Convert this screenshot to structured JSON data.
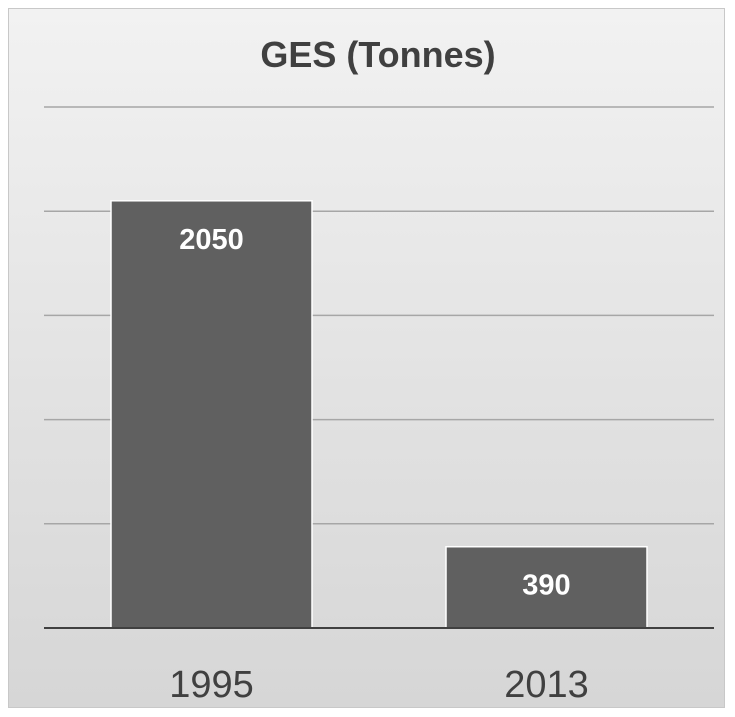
{
  "chart_data": {
    "type": "bar",
    "title": "GES (Tonnes)",
    "categories": [
      "1995",
      "2013"
    ],
    "values": [
      2050,
      390
    ],
    "data_labels": [
      "2050",
      "390"
    ],
    "ylim": [
      0,
      2500
    ],
    "y_gridline_step": 500,
    "y_tick_labels_shown": false,
    "grid": true,
    "legend": "none",
    "colors": {
      "bar": "#606060",
      "gridline": "#a6a6a6",
      "axis": "#404040",
      "text": "#404040",
      "data_label": "#ffffff"
    }
  }
}
